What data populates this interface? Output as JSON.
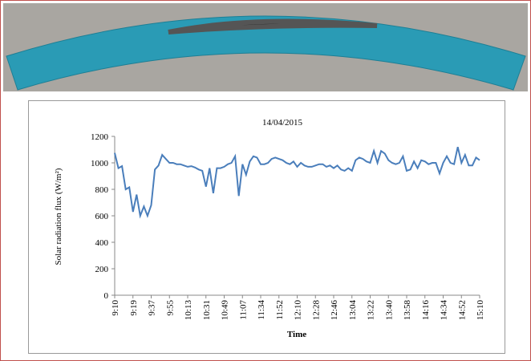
{
  "chart_data": {
    "type": "line",
    "title": "14/04/2015",
    "x_label": "Time",
    "y_label": "Solar radiation flux (W/m²)",
    "categories": [
      "9:10",
      null,
      null,
      null,
      null,
      "9:19",
      null,
      null,
      null,
      null,
      "9:37",
      null,
      null,
      null,
      null,
      "9:55",
      null,
      null,
      null,
      null,
      "10:13",
      null,
      null,
      null,
      null,
      "10:31",
      null,
      null,
      null,
      null,
      "10:49",
      null,
      null,
      null,
      null,
      "11:07",
      null,
      null,
      null,
      null,
      "11:34",
      null,
      null,
      null,
      null,
      "11:52",
      null,
      null,
      null,
      null,
      "12:10",
      null,
      null,
      null,
      null,
      "12:28",
      null,
      null,
      null,
      null,
      "12:46",
      null,
      null,
      null,
      null,
      "13:04",
      null,
      null,
      null,
      null,
      "13:22",
      null,
      null,
      null,
      null,
      "13:40",
      null,
      null,
      null,
      null,
      "13:58",
      null,
      null,
      null,
      null,
      "14:16",
      null,
      null,
      null,
      null,
      "14:34",
      null,
      null,
      null,
      null,
      "14:52",
      null,
      null,
      null,
      null,
      "15:10"
    ],
    "values": [
      1075,
      960,
      975,
      800,
      815,
      630,
      760,
      600,
      670,
      600,
      680,
      950,
      980,
      1060,
      1030,
      1000,
      1000,
      990,
      990,
      980,
      970,
      975,
      965,
      950,
      940,
      820,
      960,
      770,
      960,
      960,
      970,
      990,
      1000,
      1050,
      750,
      990,
      910,
      1010,
      1050,
      1040,
      990,
      990,
      1000,
      1030,
      1040,
      1030,
      1020,
      1000,
      990,
      1010,
      970,
      1000,
      980,
      970,
      970,
      980,
      990,
      990,
      970,
      980,
      960,
      980,
      950,
      940,
      960,
      940,
      1020,
      1040,
      1030,
      1010,
      1000,
      1090,
      1000,
      1090,
      1070,
      1020,
      1000,
      990,
      1000,
      1050,
      940,
      950,
      1010,
      960,
      1020,
      1010,
      990,
      1000,
      1000,
      920,
      1000,
      1050,
      1000,
      990,
      1120,
      1000,
      1060,
      980,
      980,
      1040,
      1020
    ],
    "color": "#4a7ebb",
    "ylim": [
      0,
      1200
    ],
    "yticks": [
      0,
      200,
      400,
      600,
      800,
      1000,
      1200
    ],
    "grid": false
  }
}
